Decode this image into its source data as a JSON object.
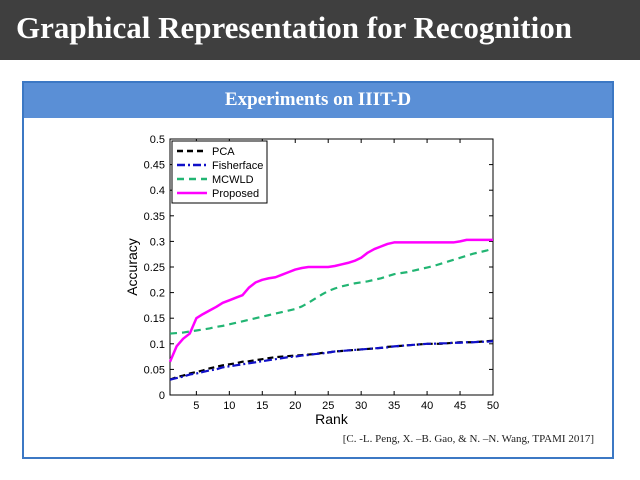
{
  "header": {
    "title": "Graphical Representation for Recognition"
  },
  "panel": {
    "heading": "Experiments on IIIT-D",
    "citation": "[C. -L. Peng, X. –B. Gao, & N. –N. Wang, TPAMI 2017]"
  },
  "colors": {
    "title_bar": "#3f3f3f",
    "panel_border": "#3c78c4",
    "panel_header": "#5a8fd6"
  },
  "chart_data": {
    "type": "line",
    "title": "",
    "xlabel": "Rank",
    "ylabel": "Accuracy",
    "xlim": [
      1,
      50
    ],
    "ylim": [
      0,
      0.5
    ],
    "xticks": [
      "5",
      "10",
      "15",
      "20",
      "25",
      "30",
      "35",
      "40",
      "45",
      "50"
    ],
    "yticks": [
      "0",
      "0.05",
      "0.1",
      "0.15",
      "0.2",
      "0.25",
      "0.3",
      "0.35",
      "0.4",
      "0.45",
      "0.5"
    ],
    "legend_position": "top-left",
    "x": [
      1,
      2,
      3,
      4,
      5,
      6,
      7,
      8,
      9,
      10,
      11,
      12,
      13,
      14,
      15,
      16,
      17,
      18,
      19,
      20,
      21,
      22,
      23,
      24,
      25,
      26,
      27,
      28,
      29,
      30,
      31,
      32,
      33,
      34,
      35,
      36,
      37,
      38,
      39,
      40,
      41,
      42,
      43,
      44,
      45,
      46,
      47,
      48,
      49,
      50
    ],
    "series": [
      {
        "name": "PCA",
        "color": "#000000",
        "dash": "6,4",
        "values": [
          0.03,
          0.035,
          0.038,
          0.042,
          0.045,
          0.048,
          0.052,
          0.055,
          0.058,
          0.06,
          0.062,
          0.065,
          0.066,
          0.068,
          0.07,
          0.072,
          0.074,
          0.075,
          0.076,
          0.077,
          0.078,
          0.079,
          0.08,
          0.082,
          0.083,
          0.085,
          0.086,
          0.087,
          0.088,
          0.089,
          0.09,
          0.091,
          0.092,
          0.094,
          0.095,
          0.096,
          0.097,
          0.098,
          0.099,
          0.1,
          0.1,
          0.1,
          0.101,
          0.102,
          0.103,
          0.103,
          0.103,
          0.104,
          0.105,
          0.106
        ]
      },
      {
        "name": "Fisherface",
        "color": "#1010c8",
        "dash": "8,3,2,3",
        "values": [
          0.03,
          0.033,
          0.036,
          0.04,
          0.042,
          0.045,
          0.048,
          0.05,
          0.054,
          0.056,
          0.058,
          0.06,
          0.062,
          0.064,
          0.066,
          0.068,
          0.07,
          0.072,
          0.074,
          0.075,
          0.077,
          0.078,
          0.08,
          0.081,
          0.083,
          0.085,
          0.086,
          0.087,
          0.088,
          0.089,
          0.09,
          0.091,
          0.092,
          0.093,
          0.095,
          0.096,
          0.097,
          0.098,
          0.099,
          0.1,
          0.1,
          0.101,
          0.101,
          0.102,
          0.102,
          0.103,
          0.103,
          0.104,
          0.104,
          0.105
        ]
      },
      {
        "name": "MCWLD",
        "color": "#22b573",
        "dash": "7,5",
        "values": [
          0.12,
          0.121,
          0.122,
          0.124,
          0.126,
          0.128,
          0.13,
          0.133,
          0.135,
          0.138,
          0.141,
          0.144,
          0.147,
          0.15,
          0.153,
          0.156,
          0.159,
          0.162,
          0.165,
          0.168,
          0.173,
          0.18,
          0.188,
          0.196,
          0.203,
          0.208,
          0.212,
          0.215,
          0.218,
          0.22,
          0.222,
          0.225,
          0.228,
          0.232,
          0.236,
          0.238,
          0.24,
          0.243,
          0.246,
          0.249,
          0.252,
          0.256,
          0.26,
          0.264,
          0.268,
          0.272,
          0.276,
          0.279,
          0.282,
          0.286
        ]
      },
      {
        "name": "Proposed",
        "color": "#ff00ff",
        "dash": "",
        "values": [
          0.065,
          0.095,
          0.11,
          0.12,
          0.15,
          0.158,
          0.165,
          0.172,
          0.18,
          0.185,
          0.19,
          0.195,
          0.21,
          0.22,
          0.225,
          0.228,
          0.23,
          0.235,
          0.24,
          0.245,
          0.248,
          0.25,
          0.25,
          0.25,
          0.25,
          0.252,
          0.255,
          0.258,
          0.262,
          0.268,
          0.278,
          0.285,
          0.29,
          0.295,
          0.298,
          0.298,
          0.298,
          0.298,
          0.298,
          0.298,
          0.298,
          0.298,
          0.298,
          0.298,
          0.3,
          0.303,
          0.303,
          0.303,
          0.303,
          0.303
        ]
      }
    ]
  }
}
